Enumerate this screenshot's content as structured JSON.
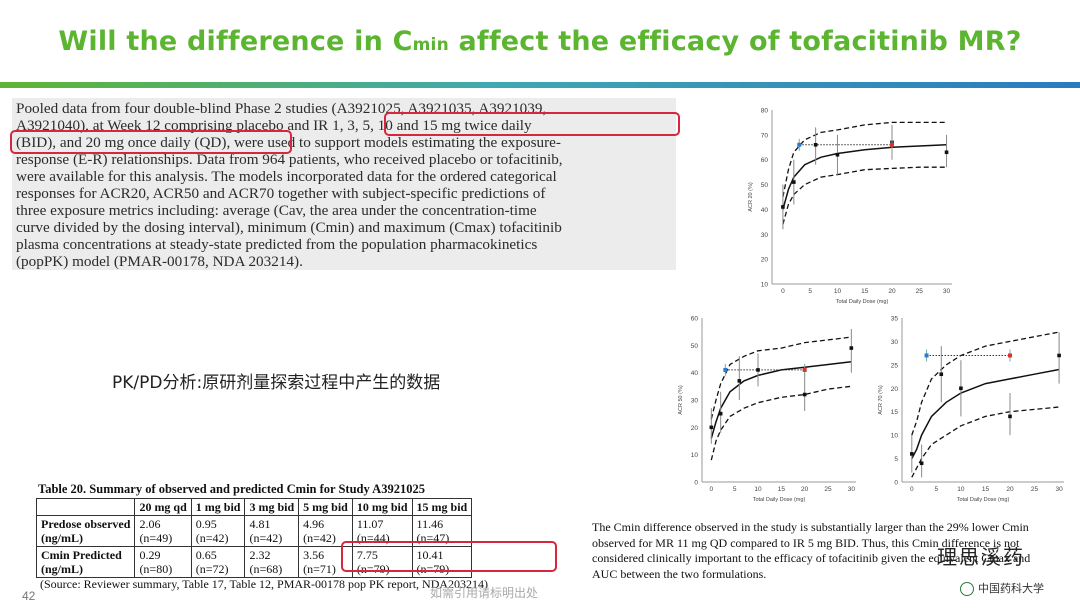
{
  "title": {
    "part1": "Will the difference in C",
    "sub": "min",
    "part2": " affect the efficacy of tofacitinib MR?"
  },
  "excerpt": {
    "lines": [
      "Pooled data from four double-blind Phase 2 studies (A3921025, A3921035, A3921039,",
      "A3921040), at Week 12 comprising placebo and IR 1, 3, 5, 10 and 15 mg twice daily",
      "(BID), and 20 mg once daily (QD), were used to support models estimating the exposure-",
      "response (E-R) relationships. Data from 964 patients, who received placebo or tofacitinib,",
      "were available for this analysis. The models incorporated data for the ordered categorical",
      "responses for ACR20, ACR50 and ACR70 together with subject-specific predictions of",
      "three exposure metrics including: average (Cav, the area under the concentration-time",
      "curve divided by the dosing interval), minimum (Cmin) and maximum (Cmax) tofacitinib",
      "plasma concentrations at steady-state predicted from the population pharmacokinetics",
      "(popPK) model (PMAR-00178, NDA 203214)."
    ]
  },
  "pkpd_label": "PK/PD分析:原研剂量探索过程中产生的数据",
  "table": {
    "title": "Table 20. Summary of observed and predicted Cmin for Study A3921025",
    "headers": [
      "",
      "20 mg qd",
      "1 mg bid",
      "3 mg bid",
      "5 mg bid",
      "10 mg bid",
      "15 mg bid"
    ],
    "rows": [
      {
        "label1": "Predose observed",
        "label2": "(ng/mL)",
        "vals": [
          "2.06",
          "0.95",
          "4.81",
          "4.96",
          "11.07",
          "11.46"
        ],
        "ns": [
          "(n=49)",
          "(n=42)",
          "(n=42)",
          "(n=42)",
          "(n=44)",
          "(n=47)"
        ]
      },
      {
        "label1": "Cmin Predicted",
        "label2": "(ng/mL)",
        "vals": [
          "0.29",
          "0.65",
          "2.32",
          "3.56",
          "7.75",
          "10.41"
        ],
        "ns": [
          "(n=80)",
          "(n=72)",
          "(n=68)",
          "(n=71)",
          "(n=79)",
          "(n=79)"
        ]
      }
    ],
    "source": "(Source: Reviewer summary, Table 17, Table 12, PMAR-00178 pop PK report, NDA203214)"
  },
  "conclusion": "The Cmin difference observed in the study is substantially larger than the 29% lower Cmin observed for MR 11 mg QD compared to IR 5 mg BID. Thus, this Cmin difference is not considered clinically important to the efficacy of tofacitinib given the equivalent Cmax and AUC between the two formulations.",
  "signature": "理思溪药",
  "page_number": "42",
  "footer_note": "如需引用请标明出处",
  "logo_text": "中国药科大学",
  "chart_data": [
    {
      "type": "line",
      "ylabel": "ACR 20 (%)",
      "xlabel": "Total Daily Dose (mg)",
      "xticks": [
        0,
        5,
        10,
        15,
        20,
        25,
        30
      ],
      "yticks": [
        10,
        20,
        30,
        40,
        50,
        60,
        70,
        80
      ],
      "xlim": [
        -2,
        31
      ],
      "ylim": [
        10,
        80
      ],
      "points": [
        {
          "x": 0,
          "y": 41
        },
        {
          "x": 2,
          "y": 51
        },
        {
          "x": 6,
          "y": 66
        },
        {
          "x": 10,
          "y": 62
        },
        {
          "x": 20,
          "y": 67
        },
        {
          "x": 30,
          "y": 63
        }
      ],
      "errors": [
        [
          32,
          50
        ],
        [
          42,
          60
        ],
        [
          58,
          73
        ],
        [
          54,
          70
        ],
        [
          60,
          74
        ],
        [
          57,
          70
        ]
      ],
      "model": [
        [
          0,
          40
        ],
        [
          1,
          48
        ],
        [
          2,
          53
        ],
        [
          4,
          58
        ],
        [
          7,
          61
        ],
        [
          10,
          62.5
        ],
        [
          15,
          64
        ],
        [
          20,
          65
        ],
        [
          25,
          65.5
        ],
        [
          30,
          66
        ]
      ],
      "upper": [
        [
          0,
          45
        ],
        [
          1,
          56
        ],
        [
          2,
          63
        ],
        [
          4,
          68
        ],
        [
          7,
          71
        ],
        [
          10,
          72
        ],
        [
          15,
          74
        ],
        [
          20,
          75
        ],
        [
          25,
          75
        ],
        [
          30,
          75
        ]
      ],
      "lower": [
        [
          0,
          34
        ],
        [
          1,
          42
        ],
        [
          2,
          46
        ],
        [
          4,
          50
        ],
        [
          7,
          53
        ],
        [
          10,
          54
        ],
        [
          15,
          56
        ],
        [
          20,
          56.5
        ],
        [
          25,
          57
        ],
        [
          30,
          57
        ]
      ],
      "markers": [
        {
          "x": 3,
          "y": 66,
          "color": "#2b7bd1"
        },
        {
          "x": 20,
          "y": 66,
          "color": "#d9342b"
        }
      ]
    },
    {
      "type": "line",
      "ylabel": "ACR 50 (%)",
      "xlabel": "Total Daily Dose (mg)",
      "xticks": [
        0,
        5,
        10,
        15,
        20,
        25,
        30
      ],
      "yticks": [
        0,
        10,
        20,
        30,
        40,
        50,
        60
      ],
      "xlim": [
        -2,
        31
      ],
      "ylim": [
        0,
        60
      ],
      "points": [
        {
          "x": 0,
          "y": 20
        },
        {
          "x": 2,
          "y": 25
        },
        {
          "x": 6,
          "y": 37
        },
        {
          "x": 10,
          "y": 41
        },
        {
          "x": 20,
          "y": 32
        },
        {
          "x": 30,
          "y": 49
        }
      ],
      "errors": [
        [
          14,
          27
        ],
        [
          18,
          33
        ],
        [
          30,
          46
        ],
        [
          35,
          47
        ],
        [
          26,
          40
        ],
        [
          40,
          56
        ]
      ],
      "model": [
        [
          0,
          16
        ],
        [
          1,
          22
        ],
        [
          2,
          27
        ],
        [
          4,
          33
        ],
        [
          7,
          37
        ],
        [
          10,
          39
        ],
        [
          15,
          41
        ],
        [
          20,
          42
        ],
        [
          25,
          43
        ],
        [
          30,
          44
        ]
      ],
      "upper": [
        [
          0,
          23
        ],
        [
          1,
          30
        ],
        [
          2,
          36
        ],
        [
          4,
          43
        ],
        [
          7,
          46
        ],
        [
          10,
          48
        ],
        [
          15,
          49
        ],
        [
          20,
          51
        ],
        [
          25,
          52
        ],
        [
          30,
          53
        ]
      ],
      "lower": [
        [
          0,
          8
        ],
        [
          1,
          15
        ],
        [
          2,
          19
        ],
        [
          4,
          24
        ],
        [
          7,
          27
        ],
        [
          10,
          29
        ],
        [
          15,
          31
        ],
        [
          20,
          32
        ],
        [
          25,
          34
        ],
        [
          30,
          35
        ]
      ],
      "markers": [
        {
          "x": 3,
          "y": 41,
          "color": "#2b7bd1"
        },
        {
          "x": 20,
          "y": 41,
          "color": "#d9342b"
        }
      ]
    },
    {
      "type": "line",
      "ylabel": "ACR 70 (%)",
      "xlabel": "Total Daily Dose (mg)",
      "xticks": [
        0,
        5,
        10,
        15,
        20,
        25,
        30
      ],
      "yticks": [
        0,
        5,
        10,
        15,
        20,
        25,
        30,
        35
      ],
      "xlim": [
        -2,
        31
      ],
      "ylim": [
        0,
        35
      ],
      "points": [
        {
          "x": 0,
          "y": 6
        },
        {
          "x": 2,
          "y": 4
        },
        {
          "x": 6,
          "y": 23
        },
        {
          "x": 10,
          "y": 20
        },
        {
          "x": 20,
          "y": 14
        },
        {
          "x": 30,
          "y": 27
        }
      ],
      "errors": [
        [
          2,
          10
        ],
        [
          1,
          8
        ],
        [
          17,
          29
        ],
        [
          14,
          26
        ],
        [
          10,
          19
        ],
        [
          21,
          32
        ]
      ],
      "model": [
        [
          0,
          5
        ],
        [
          1,
          7
        ],
        [
          2,
          10
        ],
        [
          4,
          14
        ],
        [
          7,
          17
        ],
        [
          10,
          19
        ],
        [
          15,
          21
        ],
        [
          20,
          22
        ],
        [
          25,
          23
        ],
        [
          30,
          24
        ]
      ],
      "upper": [
        [
          0,
          10
        ],
        [
          1,
          13
        ],
        [
          2,
          17
        ],
        [
          4,
          22
        ],
        [
          7,
          25
        ],
        [
          10,
          27
        ],
        [
          15,
          29
        ],
        [
          20,
          30
        ],
        [
          25,
          31
        ],
        [
          30,
          32
        ]
      ],
      "lower": [
        [
          0,
          1
        ],
        [
          1,
          3
        ],
        [
          2,
          5
        ],
        [
          4,
          8
        ],
        [
          7,
          10
        ],
        [
          10,
          12
        ],
        [
          15,
          14
        ],
        [
          20,
          15
        ],
        [
          25,
          15.5
        ],
        [
          30,
          16
        ]
      ],
      "markers": [
        {
          "x": 3,
          "y": 27,
          "color": "#2b7bd1"
        },
        {
          "x": 20,
          "y": 27,
          "color": "#d9342b"
        }
      ]
    }
  ]
}
